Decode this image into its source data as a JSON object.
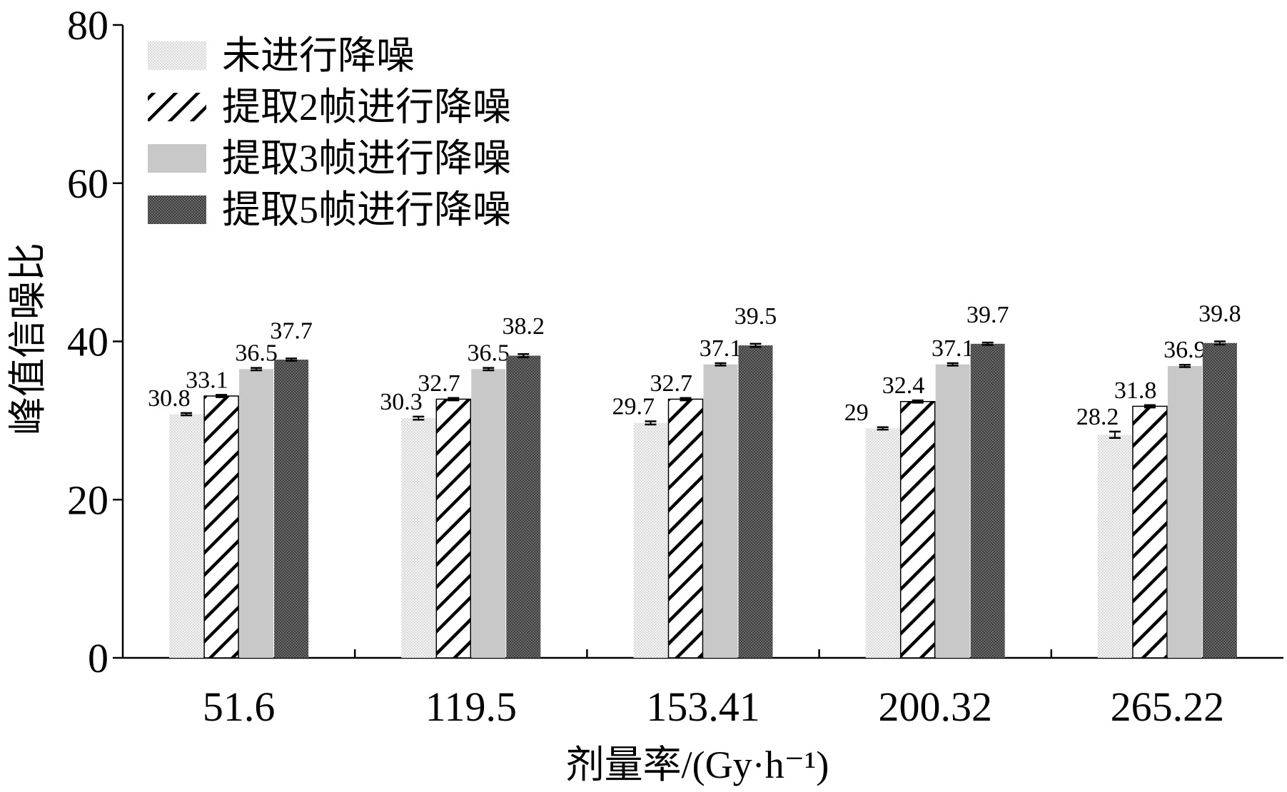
{
  "chart_data": {
    "type": "bar",
    "title": "",
    "xlabel": "剂量率/(Gy·h⁻¹)",
    "ylabel": "峰值信噪比",
    "ylim": [
      0,
      80
    ],
    "yticks": [
      "0",
      "20",
      "40",
      "60",
      "80"
    ],
    "categories": [
      "51.6",
      "119.5",
      "153.41",
      "200.32",
      "265.22"
    ],
    "series": [
      {
        "name": "未进行降噪",
        "values": [
          30.8,
          30.3,
          29.7,
          29,
          28.2
        ],
        "value_labels": [
          "30.8",
          "30.3",
          "29.7",
          "29",
          "28.2"
        ],
        "errors": [
          0.15,
          0.2,
          0.2,
          0.15,
          0.4
        ]
      },
      {
        "name": "提取2帧进行降噪",
        "values": [
          33.1,
          32.7,
          32.7,
          32.4,
          31.8
        ],
        "value_labels": [
          "33.1",
          "32.7",
          "32.7",
          "32.4",
          "31.8"
        ],
        "errors": [
          0.15,
          0.15,
          0.15,
          0.15,
          0.15
        ]
      },
      {
        "name": "提取3帧进行降噪",
        "values": [
          36.5,
          36.5,
          37.1,
          37.1,
          36.9
        ],
        "value_labels": [
          "36.5",
          "36.5",
          "37.1",
          "37.1",
          "36.9"
        ],
        "errors": [
          0.15,
          0.15,
          0.15,
          0.15,
          0.15
        ]
      },
      {
        "name": "提取5帧进行降噪",
        "values": [
          37.7,
          38.2,
          39.5,
          39.7,
          39.8
        ],
        "value_labels": [
          "37.7",
          "38.2",
          "39.5",
          "39.7",
          "39.8"
        ],
        "errors": [
          0.15,
          0.2,
          0.2,
          0.15,
          0.2
        ]
      }
    ],
    "legend_position": "top-left",
    "grid": false,
    "colors": {
      "axis": "#000000",
      "series3": "#c8c8c8",
      "series4": "#5a5a5a"
    }
  }
}
